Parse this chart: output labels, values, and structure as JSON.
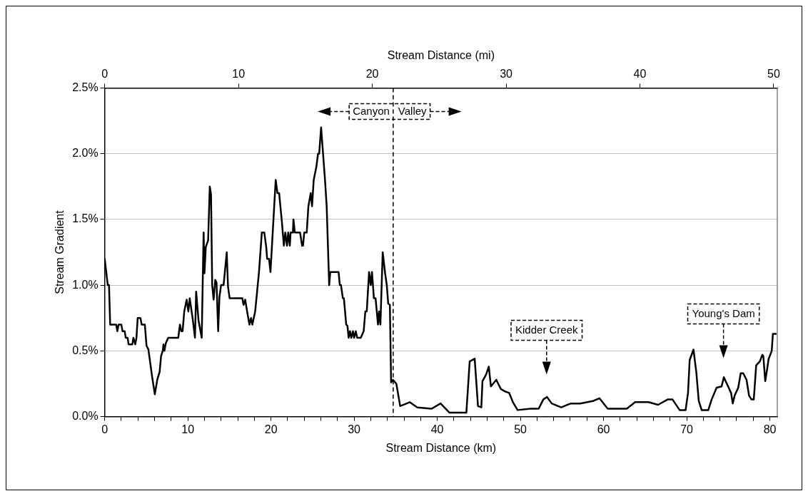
{
  "chart_data": {
    "type": "line",
    "xlabel": "Stream Distance (km)",
    "x2label": "Stream Distance (mi)",
    "ylabel": "Stream Gradient",
    "xlim": [
      0,
      80.9
    ],
    "x2lim": [
      0,
      50.27
    ],
    "ylim": [
      0,
      2.5
    ],
    "xticks": [
      0,
      {
        "value": 2,
        "label": null
      },
      {
        "value": 4,
        "label": null
      },
      {
        "value": 6,
        "label": null
      },
      {
        "value": 8,
        "label": null
      },
      10,
      {
        "value": 12,
        "label": null
      },
      {
        "value": 14,
        "label": null
      },
      {
        "value": 16,
        "label": null
      },
      {
        "value": 18,
        "label": null
      },
      20,
      {
        "value": 22,
        "label": null
      },
      {
        "value": 24,
        "label": null
      },
      {
        "value": 26,
        "label": null
      },
      {
        "value": 28,
        "label": null
      },
      30,
      {
        "value": 32,
        "label": null
      },
      {
        "value": 34,
        "label": null
      },
      {
        "value": 36,
        "label": null
      },
      {
        "value": 38,
        "label": null
      },
      40,
      {
        "value": 42,
        "label": null
      },
      {
        "value": 44,
        "label": null
      },
      {
        "value": 46,
        "label": null
      },
      {
        "value": 48,
        "label": null
      },
      50,
      {
        "value": 52,
        "label": null
      },
      {
        "value": 54,
        "label": null
      },
      {
        "value": 56,
        "label": null
      },
      {
        "value": 58,
        "label": null
      },
      60,
      {
        "value": 62,
        "label": null
      },
      {
        "value": 64,
        "label": null
      },
      {
        "value": 66,
        "label": null
      },
      {
        "value": 68,
        "label": null
      },
      70,
      {
        "value": 72,
        "label": null
      },
      {
        "value": 74,
        "label": null
      },
      {
        "value": 76,
        "label": null
      },
      {
        "value": 78,
        "label": null
      },
      80
    ],
    "x2ticks": [
      0,
      10,
      20,
      30,
      40,
      50
    ],
    "yticks": [
      {
        "value": 0,
        "label": "0.0%"
      },
      {
        "value": 0.5,
        "label": "0.5%"
      },
      {
        "value": 1,
        "label": "1.0%"
      },
      {
        "value": 1.5,
        "label": "1.5%"
      },
      {
        "value": 2,
        "label": "2.0%"
      },
      {
        "value": 2.5,
        "label": "2.5%"
      }
    ],
    "grid": "y",
    "legend": false,
    "marker": "none",
    "line_style": "solid",
    "series": [
      {
        "color": "#000000",
        "x": [
          0,
          0.37,
          0.52,
          0.66,
          1.38,
          1.52,
          1.67,
          2.0,
          2.15,
          2.4,
          2.53,
          2.76,
          2.87,
          3.33,
          3.45,
          3.68,
          3.82,
          3.97,
          4.3,
          4.45,
          4.83,
          5.03,
          5.26,
          5.69,
          6.03,
          6.32,
          6.61,
          6.78,
          6.98,
          7.07,
          7.18,
          7.36,
          7.64,
          8.85,
          9.05,
          9.22,
          9.37,
          9.57,
          9.86,
          10.06,
          10.23,
          10.57,
          10.86,
          11.0,
          11.29,
          11.67,
          11.9,
          12.0,
          12.16,
          12.44,
          12.64,
          12.79,
          12.93,
          13.1,
          13.3,
          13.45,
          13.65,
          13.8,
          14.0,
          14.3,
          14.68,
          14.83,
          15.03,
          16.55,
          16.7,
          16.9,
          17.13,
          17.41,
          17.6,
          17.76,
          18.1,
          18.33,
          18.56,
          18.9,
          19.2,
          19.43,
          19.54,
          19.77,
          19.94,
          20.29,
          20.57,
          20.78,
          20.98,
          21.3,
          21.55,
          21.72,
          21.93,
          22.07,
          22.27,
          22.36,
          22.64,
          22.7,
          22.87,
          23.5,
          23.74,
          23.85,
          24.0,
          24.3,
          24.5,
          24.78,
          24.94,
          25.14,
          25.46,
          25.66,
          25.8,
          26.03,
          26.5,
          26.7,
          26.9,
          27.0,
          27.13,
          28.13,
          28.28,
          28.42,
          28.65,
          28.77,
          29.05,
          29.2,
          29.34,
          29.51,
          29.66,
          29.86,
          30.0,
          30.2,
          30.37,
          30.8,
          31.15,
          31.35,
          31.52,
          31.8,
          32.0,
          32.15,
          32.38,
          32.58,
          32.87,
          33.0,
          33.16,
          33.44,
          33.73,
          33.93,
          34.1,
          34.3,
          34.45,
          34.68,
          35.08,
          35.54,
          36.69,
          37.6,
          39.33,
          40.4,
          41.47,
          43.5,
          43.9,
          44.5,
          44.9,
          45.3,
          45.44,
          45.87,
          46.2,
          46.45,
          47.1,
          47.65,
          48.2,
          48.65,
          49.1,
          49.66,
          51.2,
          52.2,
          52.75,
          53.2,
          53.76,
          54.9,
          56.06,
          57.2,
          58.8,
          59.5,
          60.5,
          62.8,
          63.8,
          65.4,
          66.56,
          67.7,
          68.3,
          69.15,
          69.87,
          70.16,
          70.36,
          70.82,
          71.17,
          71.45,
          71.8,
          72.6,
          73.0,
          73.6,
          74.2,
          74.47,
          75.05,
          75.34,
          75.54,
          75.77,
          76.2,
          76.5,
          76.8,
          77.2,
          77.5,
          77.8,
          78.07,
          78.36,
          78.8,
          79.1,
          79.22,
          79.45,
          79.65,
          79.86,
          80.23,
          80.37,
          80.8
        ],
        "values": [
          1.2,
          1.0,
          1.0,
          0.7,
          0.7,
          0.65,
          0.7,
          0.7,
          0.65,
          0.65,
          0.6,
          0.6,
          0.55,
          0.55,
          0.6,
          0.55,
          0.6,
          0.75,
          0.75,
          0.7,
          0.7,
          0.54,
          0.51,
          0.31,
          0.17,
          0.28,
          0.34,
          0.46,
          0.5,
          0.55,
          0.5,
          0.56,
          0.6,
          0.6,
          0.7,
          0.65,
          0.65,
          0.8,
          0.89,
          0.8,
          0.9,
          0.75,
          0.6,
          0.95,
          0.73,
          0.6,
          1.4,
          1.09,
          1.29,
          1.34,
          1.75,
          1.69,
          1.0,
          0.89,
          1.04,
          1.02,
          0.65,
          0.91,
          1.0,
          1.0,
          1.25,
          0.99,
          0.9,
          0.9,
          0.85,
          0.89,
          0.8,
          0.7,
          0.75,
          0.7,
          0.8,
          0.95,
          1.1,
          1.4,
          1.4,
          1.29,
          1.2,
          1.2,
          1.1,
          1.49,
          1.8,
          1.7,
          1.7,
          1.49,
          1.3,
          1.4,
          1.3,
          1.4,
          1.3,
          1.4,
          1.4,
          1.5,
          1.4,
          1.4,
          1.3,
          1.3,
          1.4,
          1.4,
          1.6,
          1.7,
          1.6,
          1.8,
          1.9,
          2.0,
          2.0,
          2.2,
          1.8,
          1.6,
          1.2,
          1.0,
          1.1,
          1.1,
          1.0,
          1.0,
          0.9,
          0.9,
          0.7,
          0.69,
          0.6,
          0.65,
          0.6,
          0.65,
          0.6,
          0.65,
          0.6,
          0.6,
          0.65,
          0.8,
          0.8,
          1.1,
          1.0,
          1.1,
          0.9,
          0.9,
          0.7,
          0.8,
          0.7,
          1.25,
          1.09,
          1.0,
          0.86,
          0.85,
          0.26,
          0.28,
          0.25,
          0.08,
          0.11,
          0.07,
          0.06,
          0.1,
          0.03,
          0.03,
          0.42,
          0.44,
          0.08,
          0.07,
          0.27,
          0.32,
          0.38,
          0.23,
          0.28,
          0.21,
          0.19,
          0.18,
          0.11,
          0.05,
          0.06,
          0.06,
          0.13,
          0.15,
          0.1,
          0.07,
          0.1,
          0.1,
          0.12,
          0.14,
          0.06,
          0.06,
          0.11,
          0.11,
          0.09,
          0.13,
          0.13,
          0.05,
          0.05,
          0.18,
          0.43,
          0.51,
          0.33,
          0.12,
          0.05,
          0.05,
          0.13,
          0.22,
          0.23,
          0.3,
          0.22,
          0.18,
          0.1,
          0.16,
          0.22,
          0.33,
          0.33,
          0.28,
          0.16,
          0.13,
          0.13,
          0.39,
          0.42,
          0.47,
          0.46,
          0.27,
          0.35,
          0.44,
          0.5,
          0.63,
          0.63
        ]
      }
    ],
    "ref_lines": [
      {
        "axis": "x",
        "value": 34.7,
        "line_style": "dashed",
        "color": "#000000"
      }
    ],
    "annotations": [
      "Canyon",
      "Valley",
      "Kidder Creek",
      "Young's Dam"
    ]
  }
}
